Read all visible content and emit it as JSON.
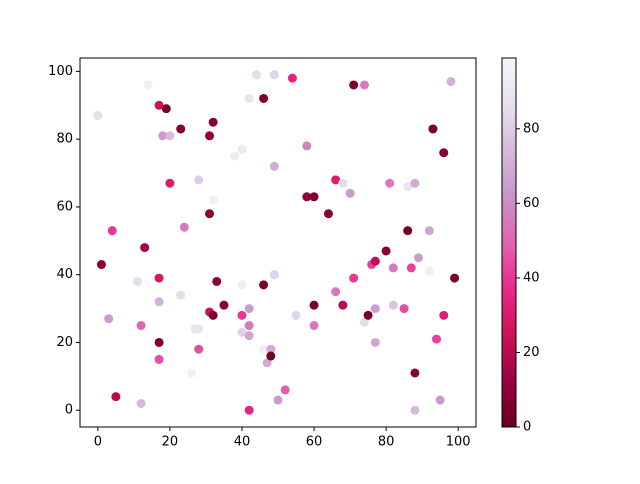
{
  "chart_data": {
    "type": "scatter",
    "x": [
      0,
      14,
      17,
      19,
      23,
      18,
      20,
      32,
      31,
      20,
      28,
      32,
      31,
      24,
      4,
      1,
      13,
      17,
      11,
      17,
      23,
      3,
      12,
      17,
      17,
      28,
      26,
      27,
      28,
      31,
      32,
      33,
      35,
      5,
      12,
      38,
      40,
      42,
      44,
      46,
      49,
      54,
      49,
      40,
      46,
      49,
      42,
      40,
      42,
      40,
      42,
      46,
      48,
      47,
      48,
      42,
      50,
      52,
      55,
      60,
      60,
      58,
      58,
      60,
      64,
      66,
      68,
      70,
      71,
      74,
      66,
      68,
      71,
      74,
      75,
      76,
      77,
      77,
      77,
      80,
      81,
      82,
      82,
      85,
      86,
      88,
      86,
      89,
      87,
      92,
      92,
      93,
      96,
      98,
      99,
      96,
      94,
      95,
      88,
      88
    ],
    "values": [
      87,
      96,
      90,
      89,
      83,
      81,
      81,
      85,
      81,
      67,
      68,
      62,
      58,
      54,
      53,
      43,
      48,
      39,
      38,
      32,
      34,
      27,
      25,
      20,
      15,
      18,
      11,
      24,
      24,
      29,
      28,
      38,
      31,
      4,
      2,
      75,
      77,
      92,
      99,
      92,
      99,
      98,
      72,
      37,
      37,
      40,
      30,
      28,
      25,
      23,
      22,
      18,
      18,
      14,
      16,
      0,
      3,
      6,
      28,
      31,
      25,
      78,
      63,
      63,
      58,
      68,
      67,
      64,
      96,
      96,
      35,
      31,
      39,
      26,
      28,
      43,
      44,
      30,
      20,
      47,
      67,
      42,
      31,
      30,
      66,
      67,
      53,
      45,
      42,
      41,
      53,
      83,
      76,
      97,
      39,
      28,
      21,
      3,
      11,
      0
    ],
    "c": [
      85,
      95,
      25,
      5,
      8,
      65,
      75,
      8,
      10,
      30,
      80,
      95,
      8,
      55,
      40,
      8,
      15,
      28,
      85,
      72,
      85,
      65,
      50,
      5,
      45,
      45,
      95,
      88,
      88,
      25,
      5,
      8,
      8,
      20,
      75,
      92,
      90,
      88,
      85,
      5,
      82,
      35,
      70,
      95,
      5,
      82,
      65,
      40,
      55,
      82,
      68,
      95,
      70,
      70,
      3,
      35,
      65,
      48,
      82,
      5,
      55,
      58,
      10,
      5,
      8,
      30,
      85,
      65,
      5,
      55,
      55,
      20,
      40,
      85,
      5,
      42,
      22,
      65,
      68,
      8,
      55,
      55,
      78,
      45,
      88,
      70,
      3,
      65,
      42,
      95,
      68,
      5,
      8,
      72,
      5,
      32,
      42,
      65,
      8,
      75
    ],
    "colormap": [
      "#67001f",
      "#980043",
      "#ce1256",
      "#e7298a",
      "#df65b0",
      "#c994c7",
      "#d4b9da",
      "#e7e1ef",
      "#f7f4f9"
    ],
    "clim": [
      0,
      99
    ],
    "cticks": [
      0,
      20,
      40,
      60,
      80
    ],
    "xlim": [
      -4.95,
      104.95
    ],
    "xticks": [
      0,
      20,
      40,
      60,
      80,
      100
    ],
    "ylim": [
      -4.95,
      103.95
    ],
    "yticks": [
      0,
      20,
      40,
      60,
      80,
      100
    ]
  }
}
